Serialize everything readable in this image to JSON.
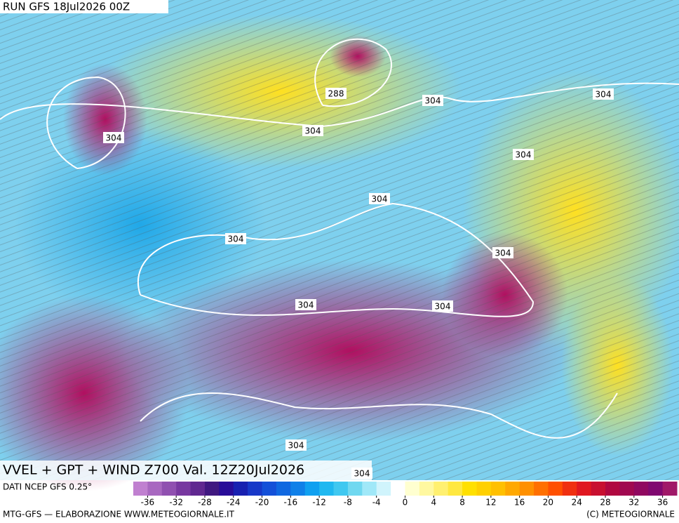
{
  "header": {
    "run": "RUN GFS 18Jul2026 00Z"
  },
  "map": {
    "title": "VVEL + GPT + WIND Z700 Val. 12Z20Jul2026",
    "contour_labels": [
      "304",
      "288",
      "304",
      "304",
      "304",
      "304",
      "304",
      "304",
      "304",
      "304",
      "304",
      "304",
      "304"
    ]
  },
  "legend": {
    "source": "DATI NCEP GFS 0.25°",
    "ticks": [
      -36,
      -32,
      -28,
      -24,
      -20,
      -16,
      -12,
      -8,
      -4,
      0,
      4,
      8,
      12,
      16,
      20,
      24,
      28,
      32,
      36
    ],
    "range": [
      -38,
      38
    ],
    "colors": [
      "#c080d0",
      "#a868c0",
      "#9050b0",
      "#7838a0",
      "#602890",
      "#401880",
      "#280c98",
      "#1820b0",
      "#1838c8",
      "#1450d8",
      "#1068e0",
      "#1080e8",
      "#10a0f0",
      "#20b8f0",
      "#40c8f0",
      "#70d8f0",
      "#a0e8f8",
      "#d0f4fc",
      "#ffffff",
      "#ffffd0",
      "#fff8a0",
      "#fff070",
      "#ffe840",
      "#ffe000",
      "#ffd000",
      "#ffc000",
      "#ffa800",
      "#ff9000",
      "#ff7000",
      "#ff5000",
      "#f03010",
      "#e01820",
      "#c81030",
      "#b00840",
      "#a00850",
      "#900860",
      "#800870",
      "#a01868"
    ]
  },
  "footer": {
    "credit": "MTG-GFS — ELABORAZIONE WWW.METEOGIORNALE.IT",
    "copyright": "(C) METEOGIORNALE"
  }
}
